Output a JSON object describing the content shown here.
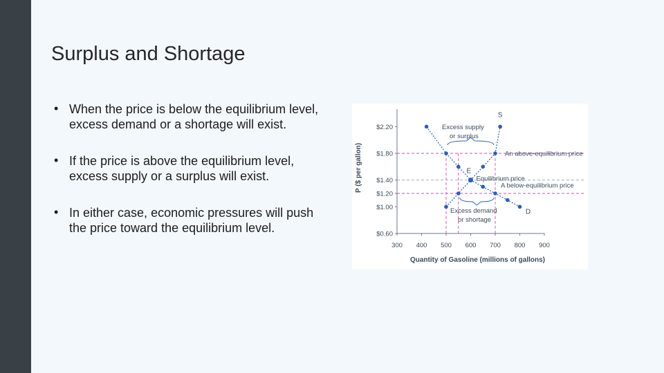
{
  "slide": {
    "title": "Surplus and Shortage",
    "bullets": [
      "When the price is below the equilibrium level, excess demand or a shortage will exist.",
      "If the price is above the equilibrium level, excess supply or a surplus will exist.",
      "In either case, economic pressures will push the price toward the equilibrium level."
    ],
    "bullet_glyph": "•"
  },
  "chart_data": {
    "type": "line",
    "xlabel": "Quantity of Gasoline (millions of gallons)",
    "ylabel": "P ($ per gallon)",
    "xlim": [
      300,
      900
    ],
    "ylim": [
      0.6,
      2.4
    ],
    "x_ticks": [
      300,
      400,
      500,
      600,
      700,
      800,
      900
    ],
    "x_tick_labels": [
      "300",
      "400",
      "500",
      "600",
      "700",
      "800",
      "900"
    ],
    "y_ticks": [
      0.6,
      1.0,
      1.2,
      1.4,
      1.8,
      2.2
    ],
    "y_tick_labels": [
      "$0.60",
      "$1.00",
      "$1.20",
      "$1.40",
      "$1.80",
      "$2.20"
    ],
    "grid": false,
    "series": [
      {
        "name": "S",
        "color": "#2b5fb4",
        "x": [
          500,
          550,
          600,
          650,
          700,
          720
        ],
        "y": [
          1.0,
          1.2,
          1.4,
          1.6,
          1.8,
          2.2
        ]
      },
      {
        "name": "D",
        "color": "#2b5fb4",
        "x": [
          420,
          500,
          550,
          600,
          650,
          700,
          750,
          800
        ],
        "y": [
          2.2,
          1.8,
          1.6,
          1.4,
          1.3,
          1.2,
          1.1,
          1.0
        ]
      }
    ],
    "equilibrium": {
      "label": "E",
      "x": 600,
      "y": 1.4
    },
    "reference_lines": {
      "color": "#d24ab5",
      "horizontal": [
        1.8,
        1.2
      ],
      "vertical": [
        500,
        550,
        700
      ]
    },
    "annotations": {
      "excess_supply": "Excess supply or surplus",
      "excess_supply_line1": "Excess supply",
      "excess_supply_line2": "or surplus",
      "above_price": "An above-equilibrium price",
      "equilibrium_price": "Equilibrium price",
      "below_price": "A below-equilibrium price",
      "excess_demand_line1": "Excess demand",
      "excess_demand_line2": "or shortage"
    }
  }
}
